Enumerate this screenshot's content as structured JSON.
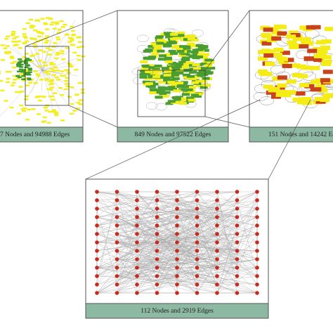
{
  "panels": [
    {
      "caption": "7 Nodes and 94988 Edges"
    },
    {
      "caption": "849 Nodes and 97522 Edges"
    },
    {
      "caption": "151 Nodes and 14242 Ed"
    },
    {
      "caption": "112 Nodes and 2919 Edges"
    }
  ]
}
